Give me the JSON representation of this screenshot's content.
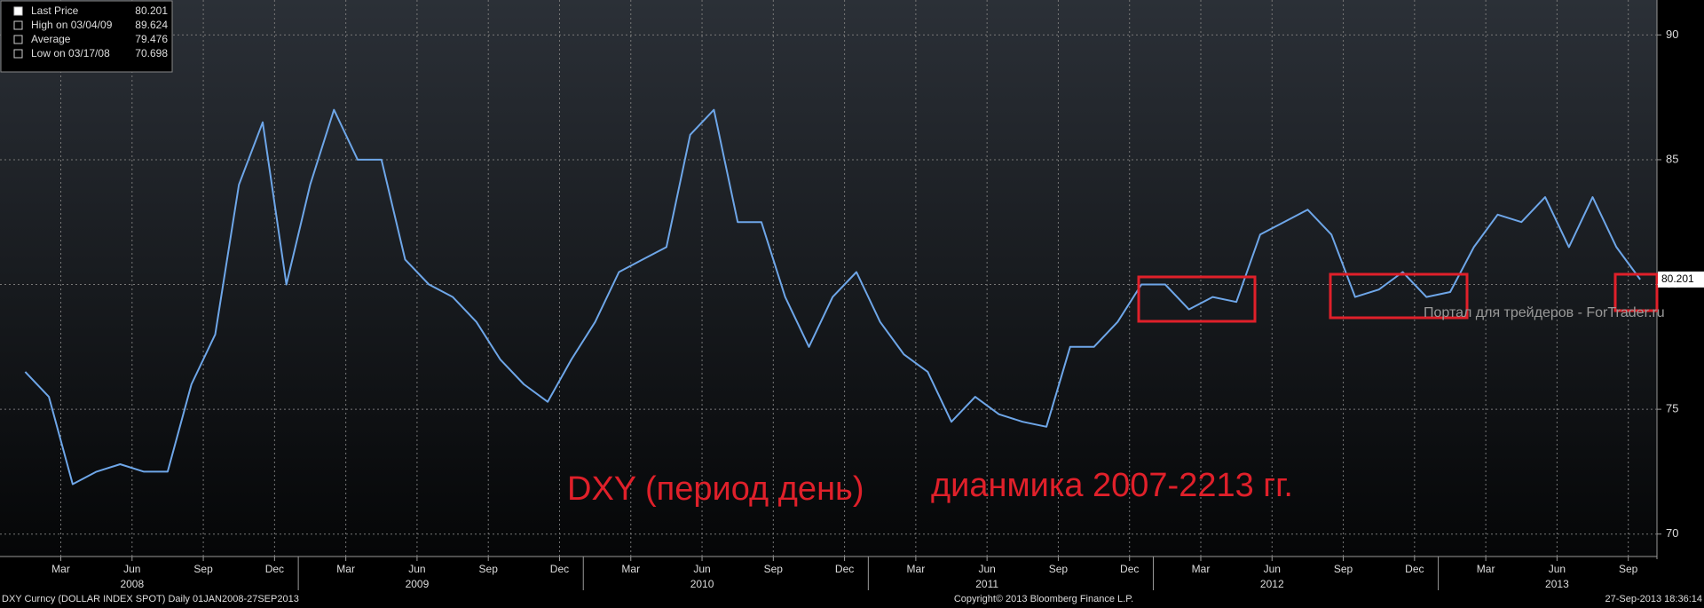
{
  "chart_data": {
    "type": "line",
    "x": [
      "2008-01",
      "2008-02",
      "2008-03",
      "2008-04",
      "2008-05",
      "2008-06",
      "2008-07",
      "2008-08",
      "2008-09",
      "2008-10",
      "2008-11",
      "2008-12",
      "2009-01",
      "2009-02",
      "2009-03",
      "2009-04",
      "2009-05",
      "2009-06",
      "2009-07",
      "2009-08",
      "2009-09",
      "2009-10",
      "2009-11",
      "2009-12",
      "2010-01",
      "2010-02",
      "2010-03",
      "2010-04",
      "2010-05",
      "2010-06",
      "2010-07",
      "2010-08",
      "2010-09",
      "2010-10",
      "2010-11",
      "2010-12",
      "2011-01",
      "2011-02",
      "2011-03",
      "2011-04",
      "2011-05",
      "2011-06",
      "2011-07",
      "2011-08",
      "2011-09",
      "2011-10",
      "2011-11",
      "2011-12",
      "2012-01",
      "2012-02",
      "2012-03",
      "2012-04",
      "2012-05",
      "2012-06",
      "2012-07",
      "2012-08",
      "2012-09",
      "2012-10",
      "2012-11",
      "2012-12",
      "2013-01",
      "2013-02",
      "2013-03",
      "2013-04",
      "2013-05",
      "2013-06",
      "2013-07",
      "2013-08",
      "2013-09"
    ],
    "series": [
      {
        "name": "Last Price",
        "color": "#6ea6e8",
        "values": [
          76.5,
          75.5,
          72,
          72.5,
          72.8,
          72.5,
          72.5,
          76,
          78,
          84,
          86.5,
          80,
          84,
          87,
          85,
          85,
          81,
          80,
          79.5,
          78.5,
          77,
          76,
          75.3,
          77,
          78.5,
          80.5,
          81,
          81.5,
          86,
          87,
          82.5,
          82.5,
          79.5,
          77.5,
          79.5,
          80.5,
          78.5,
          77.2,
          76.5,
          74.5,
          75.5,
          74.8,
          74.5,
          74.3,
          77.5,
          77.5,
          78.5,
          80,
          80,
          79,
          79.5,
          79.3,
          82,
          82.5,
          83,
          82,
          79.5,
          79.8,
          80.5,
          79.5,
          79.7,
          81.5,
          82.8,
          82.5,
          83.5,
          81.5,
          83.5,
          81.5,
          80.2
        ]
      }
    ],
    "stats": [
      {
        "label": "Last Price",
        "value": 80.201
      },
      {
        "label": "High on 03/04/09",
        "value": 89.624
      },
      {
        "label": "Average",
        "value": 79.476
      },
      {
        "label": "Low on 03/17/08",
        "value": 70.698
      }
    ],
    "ylim": [
      69.1,
      91.4
    ],
    "yticks": [
      70,
      75,
      80,
      85,
      90
    ],
    "grid": true,
    "xticks": [
      {
        "value": "2008-03",
        "label": "Mar"
      },
      {
        "value": "2008-06",
        "label": "Jun"
      },
      {
        "value": "2008-09",
        "label": "Sep"
      },
      {
        "value": "2008-12",
        "label": "Dec"
      },
      {
        "value": "2009-03",
        "label": "Mar"
      },
      {
        "value": "2009-06",
        "label": "Jun"
      },
      {
        "value": "2009-09",
        "label": "Sep"
      },
      {
        "value": "2009-12",
        "label": "Dec"
      },
      {
        "value": "2010-03",
        "label": "Mar"
      },
      {
        "value": "2010-06",
        "label": "Jun"
      },
      {
        "value": "2010-09",
        "label": "Sep"
      },
      {
        "value": "2010-12",
        "label": "Dec"
      },
      {
        "value": "2011-03",
        "label": "Mar"
      },
      {
        "value": "2011-06",
        "label": "Jun"
      },
      {
        "value": "2011-09",
        "label": "Sep"
      },
      {
        "value": "2011-12",
        "label": "Dec"
      },
      {
        "value": "2012-03",
        "label": "Mar"
      },
      {
        "value": "2012-06",
        "label": "Jun"
      },
      {
        "value": "2012-09",
        "label": "Sep"
      },
      {
        "value": "2012-12",
        "label": "Dec"
      },
      {
        "value": "2013-03",
        "label": "Mar"
      },
      {
        "value": "2013-06",
        "label": "Jun"
      },
      {
        "value": "2013-09",
        "label": "Sep"
      }
    ],
    "years": [
      "2008",
      "2009",
      "2010",
      "2011",
      "2012",
      "2013"
    ],
    "annotations": [
      "DXY (период день)",
      "дианмика 2007-2213 гг."
    ],
    "watermark": "Портал для трейдеров - ForTrader.ru"
  },
  "footer": {
    "left": "DXY Curncy (DOLLAR INDEX SPOT)  Daily 01JAN2008-27SEP2013",
    "center": "Copyright© 2013 Bloomberg Finance L.P.",
    "right": "27-Sep-2013 18:36:14"
  }
}
